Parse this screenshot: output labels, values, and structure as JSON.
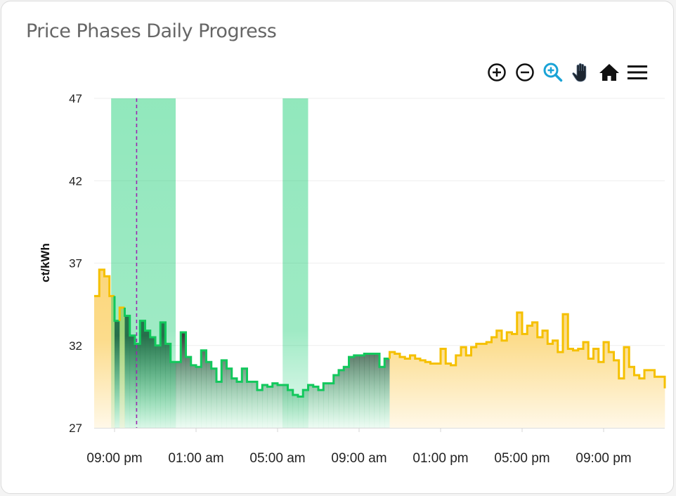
{
  "card": {
    "title": "Price Phases Daily Progress"
  },
  "toolbar": {
    "icons": [
      "zoom-in-icon",
      "zoom-out-icon",
      "selection-zoom-icon",
      "pan-hand-icon",
      "reset-home-icon",
      "menu-icon"
    ],
    "active_color": "#1aa3d6"
  },
  "chart_data": {
    "type": "area",
    "title": "Price Phases Daily Progress",
    "ylabel": "ct/kWh",
    "xlabel": "",
    "ylim": [
      27,
      47
    ],
    "yticks": [
      27,
      32,
      37,
      42,
      47
    ],
    "xtick_labels": [
      "09:00 pm",
      "01:00 am",
      "05:00 am",
      "09:00 am",
      "01:00 pm",
      "05:00 pm",
      "09:00 pm"
    ],
    "x_start": "08:00 pm",
    "interval_minutes": 15,
    "grid": true,
    "step": true,
    "values": [
      35.0,
      36.6,
      36.2,
      35.0,
      33.5,
      34.3,
      33.8,
      32.6,
      32.1,
      33.5,
      32.9,
      32.5,
      32.0,
      33.4,
      32.1,
      31.0,
      31.0,
      32.8,
      31.3,
      30.8,
      30.7,
      31.7,
      31.0,
      30.6,
      29.8,
      31.1,
      30.6,
      30.0,
      29.8,
      30.6,
      29.8,
      29.8,
      29.3,
      29.6,
      29.5,
      29.7,
      29.6,
      29.6,
      29.3,
      29.0,
      28.9,
      29.3,
      29.6,
      29.5,
      29.3,
      29.7,
      29.7,
      30.2,
      30.5,
      30.7,
      31.3,
      31.4,
      31.4,
      31.5,
      31.5,
      31.5,
      30.7,
      31.2,
      31.6,
      31.5,
      31.3,
      31.2,
      31.4,
      31.2,
      31.1,
      31.0,
      30.9,
      30.9,
      31.8,
      30.9,
      30.8,
      31.4,
      31.9,
      31.4,
      31.9,
      32.1,
      32.1,
      32.2,
      32.5,
      32.9,
      32.3,
      32.8,
      32.7,
      34.0,
      32.7,
      33.2,
      33.4,
      32.5,
      32.9,
      32.1,
      32.3,
      31.6,
      33.9,
      31.8,
      31.7,
      31.8,
      32.2,
      31.2,
      31.8,
      31.0,
      32.2,
      31.6,
      31.1,
      30.0,
      31.9,
      30.7,
      30.2,
      30.0,
      30.5,
      30.5,
      30.1,
      30.1
    ],
    "phase_green_ranges": [
      [
        4,
        4
      ],
      [
        6,
        57
      ]
    ],
    "phase_colors": {
      "green_line": "#12c85c",
      "yellow_line": "#f5c000",
      "green_fill": "#3d3d3d",
      "yellow_fill": "#fbd67a"
    },
    "highlight_bands": [
      [
        "08:50 pm",
        "12:00 am"
      ],
      [
        "05:15 am",
        "06:30 am"
      ]
    ],
    "band_color": "#2ecc71",
    "now_marker": "10:05 pm",
    "now_marker_color": "#9c27b0"
  }
}
